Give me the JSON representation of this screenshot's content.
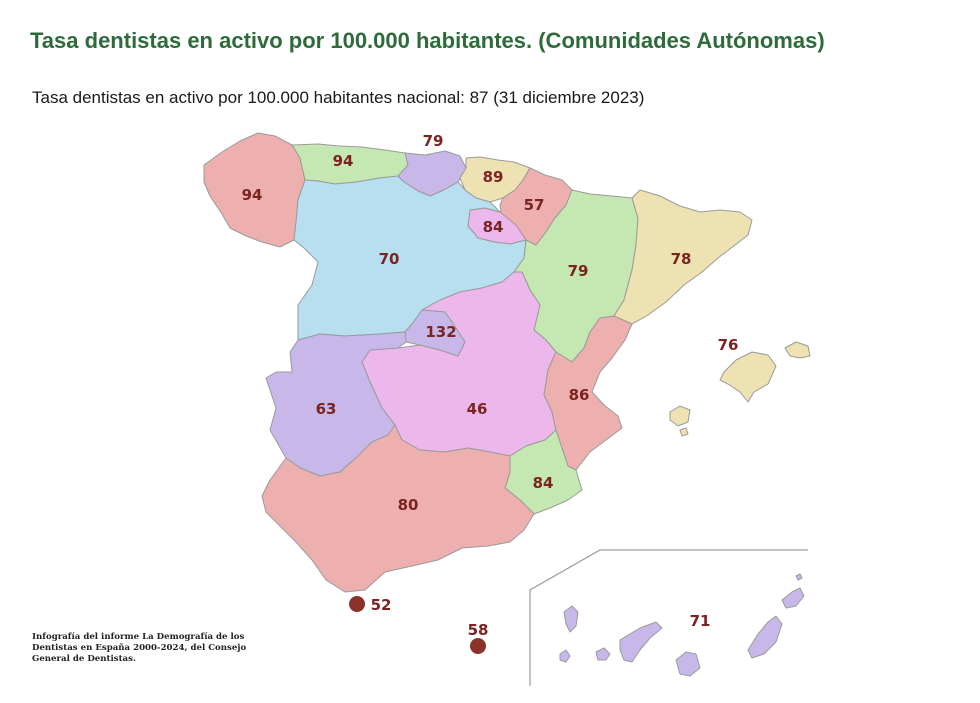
{
  "header": {
    "title": "Tasa dentistas en activo por 100.000 habitantes. (Comunidades Autónomas)",
    "subtitle": "Tasa dentistas en activo por 100.000 habitantes nacional: 87 (31 diciembre 2023)"
  },
  "colors": {
    "title": "#2e6b3a",
    "label": "#7a2320",
    "salmon": "#eeb0ae",
    "green": "#c5e8b2",
    "lavender": "#c8b8ea",
    "cream": "#efe2b2",
    "blue": "#b8dff0",
    "pink": "#ecb8ec",
    "dot": "#8c3228"
  },
  "regions": [
    {
      "id": "galicia",
      "color": "salmon",
      "rate": "94"
    },
    {
      "id": "asturias",
      "color": "green",
      "rate": "94"
    },
    {
      "id": "cantabria",
      "color": "lavender",
      "rate": "79"
    },
    {
      "id": "pais-vasco",
      "color": "cream",
      "rate": "89"
    },
    {
      "id": "navarra",
      "color": "salmon",
      "rate": "57"
    },
    {
      "id": "la-rioja",
      "color": "pink",
      "rate": "84"
    },
    {
      "id": "castilla-leon",
      "color": "blue",
      "rate": "70"
    },
    {
      "id": "aragon",
      "color": "green",
      "rate": "79"
    },
    {
      "id": "cataluna",
      "color": "cream",
      "rate": "78"
    },
    {
      "id": "madrid",
      "color": "lavender",
      "rate": "132"
    },
    {
      "id": "castilla-la-mancha",
      "color": "pink",
      "rate": "46"
    },
    {
      "id": "extremadura",
      "color": "lavender",
      "rate": "63"
    },
    {
      "id": "valencia",
      "color": "salmon",
      "rate": "86"
    },
    {
      "id": "murcia",
      "color": "green",
      "rate": "84"
    },
    {
      "id": "andalucia",
      "color": "salmon",
      "rate": "80"
    },
    {
      "id": "baleares",
      "color": "cream",
      "rate": "76"
    },
    {
      "id": "canarias",
      "color": "lavender",
      "rate": "71"
    },
    {
      "id": "ceuta",
      "color": "dot",
      "rate": "52"
    },
    {
      "id": "melilla",
      "color": "dot",
      "rate": "58"
    }
  ],
  "credit": {
    "line1": "Infografía del informe La Demografía de los",
    "line2": "Dentistas en España 2000-2024, del Consejo",
    "line3": "General de Dentistas."
  }
}
